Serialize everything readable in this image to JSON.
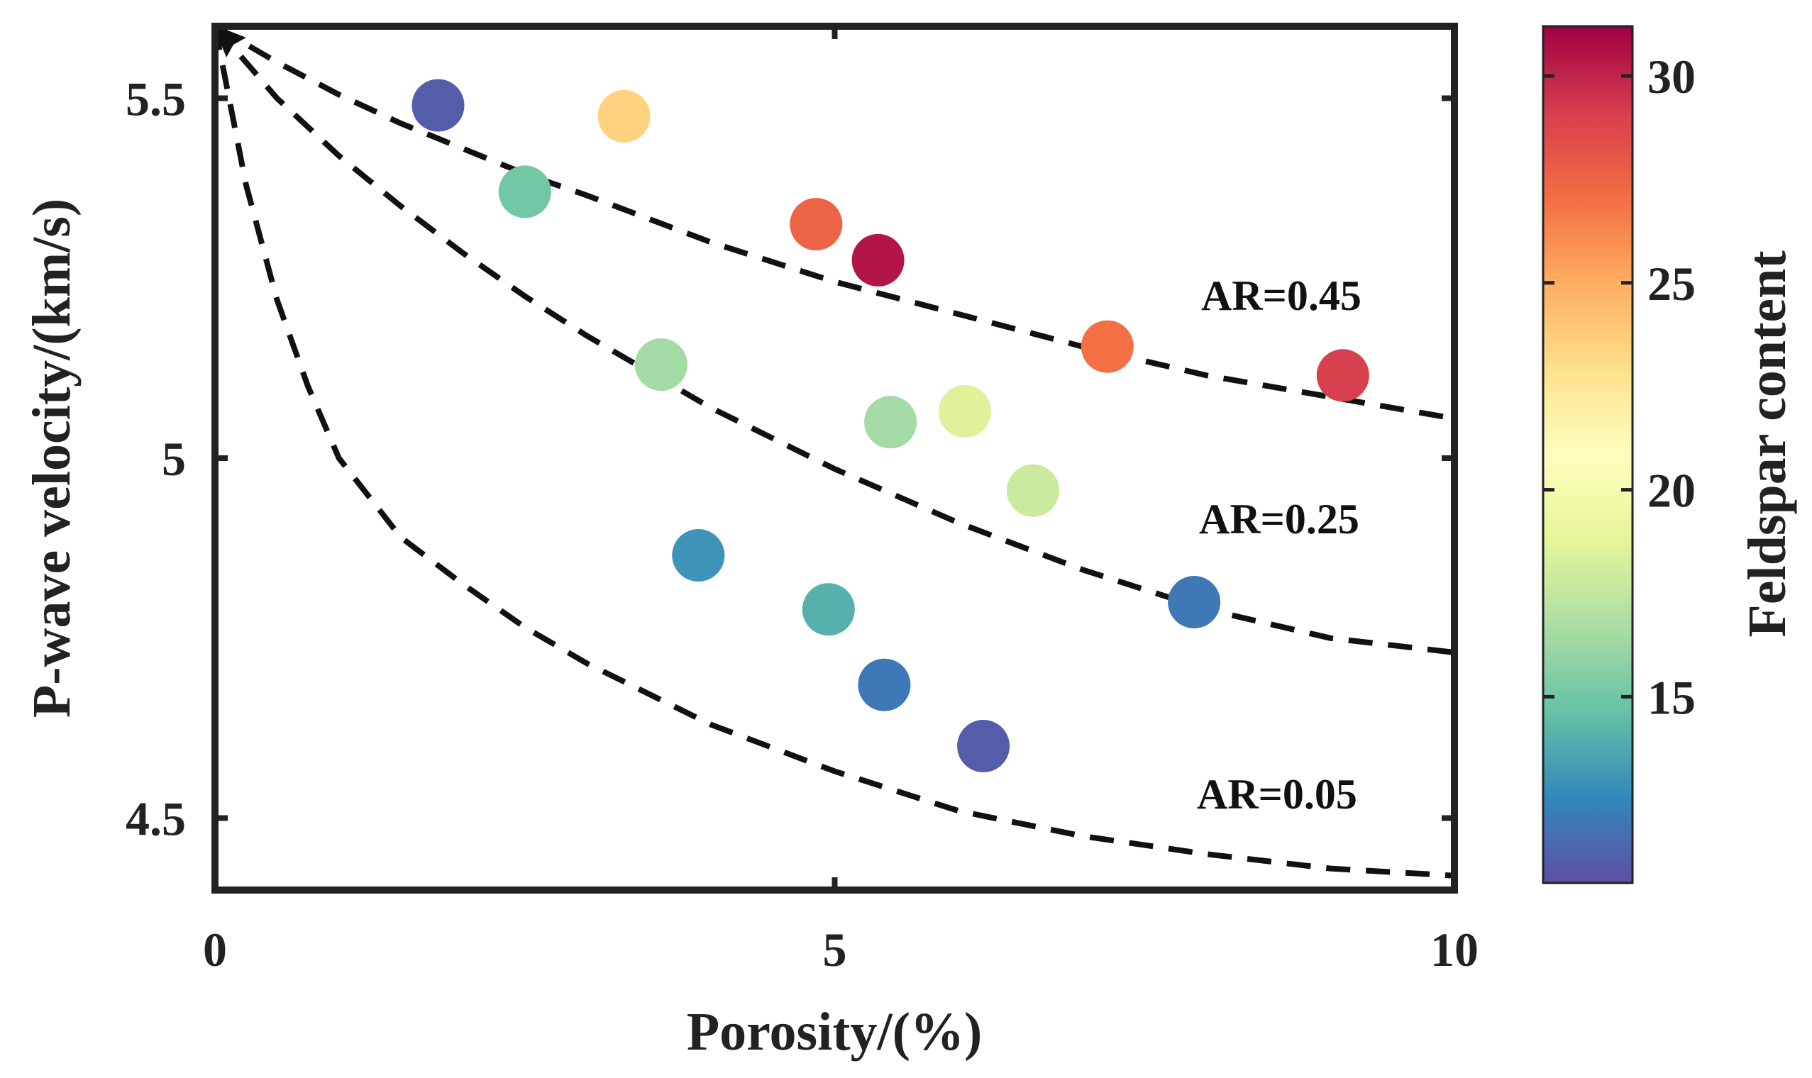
{
  "chart_data": {
    "type": "scatter",
    "xlabel": "Porosity/(%)",
    "ylabel": "P-wave velocity/(km/s)",
    "xlim": [
      0,
      10
    ],
    "ylim": [
      4.4,
      5.6
    ],
    "xticks": [
      0,
      5,
      10
    ],
    "yticks": [
      4.5,
      5,
      5.5
    ],
    "x_tick_labels": [
      "0",
      "5",
      "10"
    ],
    "y_tick_labels": [
      "4.5",
      "5",
      "5.5"
    ],
    "colorbar": {
      "label": "Feldspar content",
      "range": [
        10.5,
        31.2
      ],
      "ticks": [
        15,
        20,
        25,
        30
      ],
      "tick_labels": [
        "15",
        "20",
        "25",
        "30"
      ],
      "colormap": [
        "#5E4FA2",
        "#3288BD",
        "#66C2A5",
        "#ABDDA4",
        "#E6F598",
        "#FFFFBF",
        "#FEE08B",
        "#FDAE61",
        "#F46D43",
        "#D53E4F",
        "#9E0142"
      ]
    },
    "points": [
      {
        "x": 1.8,
        "y": 5.49,
        "feldspar": 11
      },
      {
        "x": 3.3,
        "y": 5.475,
        "feldspar": 23.5
      },
      {
        "x": 2.5,
        "y": 5.37,
        "feldspar": 15
      },
      {
        "x": 4.85,
        "y": 5.325,
        "feldspar": 27.5
      },
      {
        "x": 5.35,
        "y": 5.275,
        "feldspar": 30.5
      },
      {
        "x": 7.2,
        "y": 5.155,
        "feldspar": 27
      },
      {
        "x": 9.1,
        "y": 5.115,
        "feldspar": 29
      },
      {
        "x": 3.6,
        "y": 5.13,
        "feldspar": 16.5
      },
      {
        "x": 5.45,
        "y": 5.05,
        "feldspar": 16.5
      },
      {
        "x": 6.05,
        "y": 5.065,
        "feldspar": 18.5
      },
      {
        "x": 6.6,
        "y": 4.955,
        "feldspar": 17.8
      },
      {
        "x": 3.9,
        "y": 4.865,
        "feldspar": 13
      },
      {
        "x": 4.95,
        "y": 4.79,
        "feldspar": 14
      },
      {
        "x": 7.9,
        "y": 4.8,
        "feldspar": 12
      },
      {
        "x": 5.4,
        "y": 4.685,
        "feldspar": 12
      },
      {
        "x": 6.2,
        "y": 4.6,
        "feldspar": 11
      }
    ],
    "curves": [
      {
        "name": "AR=0.45",
        "label": "AR=0.45",
        "style": "dashed",
        "x": [
          0,
          0.5,
          1,
          1.5,
          2,
          2.5,
          3,
          4,
          5,
          6,
          7,
          8,
          9,
          10
        ],
        "y": [
          5.6,
          5.55,
          5.505,
          5.465,
          5.43,
          5.395,
          5.365,
          5.3,
          5.245,
          5.2,
          5.155,
          5.115,
          5.085,
          5.055
        ]
      },
      {
        "name": "AR=0.25",
        "label": "AR=0.25",
        "style": "dashed",
        "x": [
          0,
          0.5,
          1,
          1.5,
          2,
          2.5,
          3,
          4,
          5,
          6,
          7,
          8,
          9,
          10
        ],
        "y": [
          5.6,
          5.5,
          5.42,
          5.35,
          5.285,
          5.225,
          5.17,
          5.07,
          4.985,
          4.91,
          4.845,
          4.79,
          4.75,
          4.73
        ]
      },
      {
        "name": "AR=0.05",
        "label": "AR=0.05",
        "style": "dashed",
        "x": [
          0,
          0.25,
          0.5,
          0.75,
          1,
          1.5,
          2,
          2.5,
          3,
          4,
          5,
          6,
          7,
          8,
          9,
          10
        ],
        "y": [
          5.6,
          5.38,
          5.22,
          5.1,
          5.0,
          4.89,
          4.825,
          4.765,
          4.715,
          4.63,
          4.565,
          4.51,
          4.475,
          4.45,
          4.43,
          4.42
        ]
      }
    ],
    "annotations": [
      "AR=0.45",
      "AR=0.25",
      "AR=0.05"
    ],
    "grid": false
  }
}
